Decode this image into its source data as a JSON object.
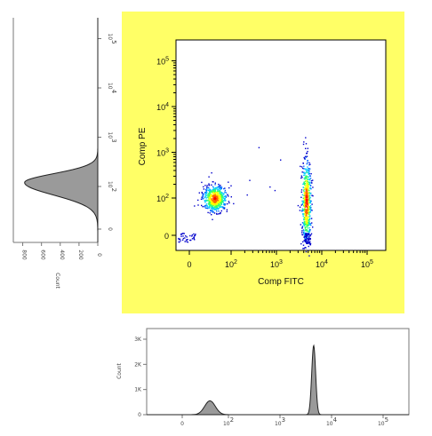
{
  "chart_data": [
    {
      "type": "scatter",
      "panel": "main-dot-plot",
      "xlabel": "Comp FITC",
      "ylabel": "Comp PE",
      "scale": "biexponential",
      "x_ticks": [
        "0",
        "10^2",
        "10^3",
        "10^4",
        "10^5"
      ],
      "y_ticks": [
        "0",
        "10^2",
        "10^3",
        "10^4",
        "10^5"
      ],
      "background": "#ffff66",
      "populations": [
        {
          "x_center": 60,
          "y_center": 100,
          "x_spread_decades": 0.13,
          "y_spread_decades": 0.14,
          "relative_density": 0.55
        },
        {
          "x_center": 4500,
          "y_center": 90,
          "x_spread_decades": 0.05,
          "y_spread_decades": 0.45,
          "relative_density": 0.45
        }
      ],
      "sparse_events": [
        [
          250,
          250
        ],
        [
          400,
          1300
        ],
        [
          900,
          150
        ],
        [
          1200,
          700
        ],
        [
          220,
          120
        ],
        [
          700,
          180
        ]
      ],
      "heat_colors": [
        "#0000cc",
        "#0066ff",
        "#00ccff",
        "#33ff66",
        "#ffff00",
        "#ff6600",
        "#ff0000"
      ]
    },
    {
      "type": "area",
      "panel": "left-histogram",
      "orientation": "vertical",
      "axis": "Comp PE",
      "ylabel": "Count",
      "y_ticks": [
        "0",
        "10^2",
        "10^3",
        "10^4",
        "10^5"
      ],
      "count_ticks": [
        "0",
        "200",
        "400",
        "600",
        "800"
      ],
      "peak_at": 120,
      "peak_count": 780
    },
    {
      "type": "area",
      "panel": "bottom-histogram",
      "axis": "Comp FITC",
      "ylabel": "Count",
      "x_ticks": [
        "0",
        "10^2",
        "10^3",
        "10^4",
        "10^5"
      ],
      "count_ticks": [
        "0",
        "1K",
        "2K",
        "3K"
      ],
      "peaks": [
        {
          "at": 60,
          "count": 550
        },
        {
          "at": 4500,
          "count": 2750
        }
      ]
    }
  ],
  "labels": {
    "main_x": "Comp FITC",
    "main_y": "Comp PE",
    "left_count": "Count",
    "bottom_count": "Count"
  }
}
